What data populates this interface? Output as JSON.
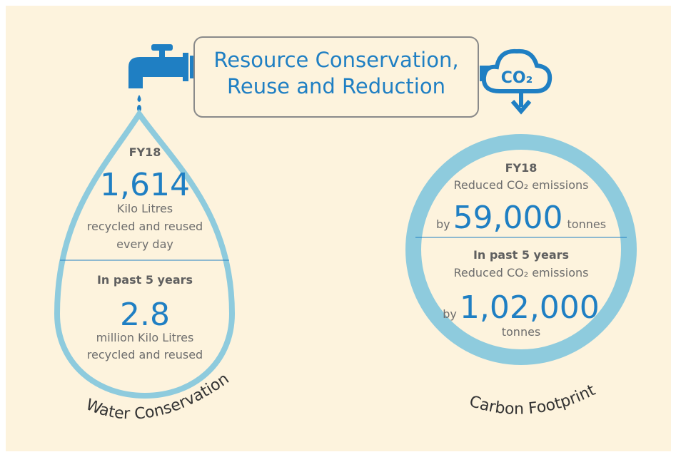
{
  "title": {
    "line1": "Resource Conservation,",
    "line2": "Reuse and Reduction"
  },
  "icon_label": "CO₂",
  "water": {
    "label": "Water Conservation",
    "fy18": {
      "heading": "FY18",
      "value": "1,614",
      "lines": [
        "Kilo Litres",
        "recycled and reused",
        "every day"
      ]
    },
    "five_years": {
      "heading": "In past 5 years",
      "value": "2.8",
      "lines": [
        "million Kilo Litres",
        "recycled and reused"
      ]
    }
  },
  "carbon": {
    "label": "Carbon Footprint",
    "fy18": {
      "heading": "FY18",
      "text": "Reduced CO₂ emissions",
      "prefix": "by",
      "value": "59,000",
      "suffix": "tonnes"
    },
    "five_years": {
      "heading": "In past 5 years",
      "text": "Reduced CO₂ emissions",
      "prefix": "by",
      "value": "1,02,000",
      "suffix": "tonnes"
    }
  }
}
